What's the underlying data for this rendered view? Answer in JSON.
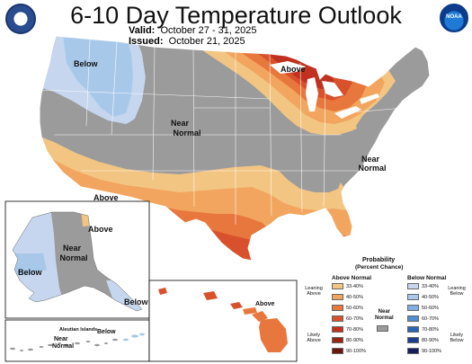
{
  "header": {
    "title": "6-10 Day Temperature Outlook",
    "valid_label": "Valid:",
    "valid_dates": "October 27 - 31, 2025",
    "issued_label": "Issued:",
    "issued_date": "October 21, 2025"
  },
  "logos": {
    "left": "commerce-seal-icon",
    "right": "noaa-logo-icon",
    "right_text": "NOAA"
  },
  "map_labels": {
    "below_nw": "Below",
    "above_gl": "Above",
    "near_normal_central": [
      "Near",
      "Normal"
    ],
    "near_normal_east": [
      "Near",
      "Normal"
    ],
    "above_sw": "Above",
    "alaska_above": "Above",
    "alaska_near_normal": [
      "Near",
      "Normal"
    ],
    "alaska_below_west": "Below",
    "alaska_below_se": "Below",
    "aleutian_title": "Aleutian Islands",
    "aleutian_near_normal": [
      "Near",
      "Normal"
    ],
    "aleutian_below": "Below",
    "hawaii_above": "Above"
  },
  "legend": {
    "title": "Probability",
    "subtitle": "(Percent Chance)",
    "above_head": "Above Normal",
    "below_head": "Below Normal",
    "near_head": [
      "Near",
      "Normal"
    ],
    "leaning_above": [
      "Leaning",
      "Above"
    ],
    "likely_above": [
      "Likely",
      "Above"
    ],
    "leaning_below": [
      "Leaning",
      "Below"
    ],
    "likely_below": [
      "Likely",
      "Below"
    ],
    "near_color": "#9b9b9b",
    "above": [
      {
        "label": "33-40%",
        "color": "#f3c583"
      },
      {
        "label": "40-50%",
        "color": "#f2a55e"
      },
      {
        "label": "50-60%",
        "color": "#e8773d"
      },
      {
        "label": "60-70%",
        "color": "#d9512c"
      },
      {
        "label": "70-80%",
        "color": "#c0321f"
      },
      {
        "label": "80-90%",
        "color": "#992314"
      },
      {
        "label": "90-100%",
        "color": "#6e150b"
      }
    ],
    "below": [
      {
        "label": "33-40%",
        "color": "#c6d6ee"
      },
      {
        "label": "40-50%",
        "color": "#a8c8ea"
      },
      {
        "label": "50-60%",
        "color": "#7fb0e1"
      },
      {
        "label": "60-70%",
        "color": "#4f8fd0"
      },
      {
        "label": "70-80%",
        "color": "#2d64b4"
      },
      {
        "label": "80-90%",
        "color": "#1d3f8d"
      },
      {
        "label": "90-100%",
        "color": "#161e5e"
      }
    ]
  }
}
